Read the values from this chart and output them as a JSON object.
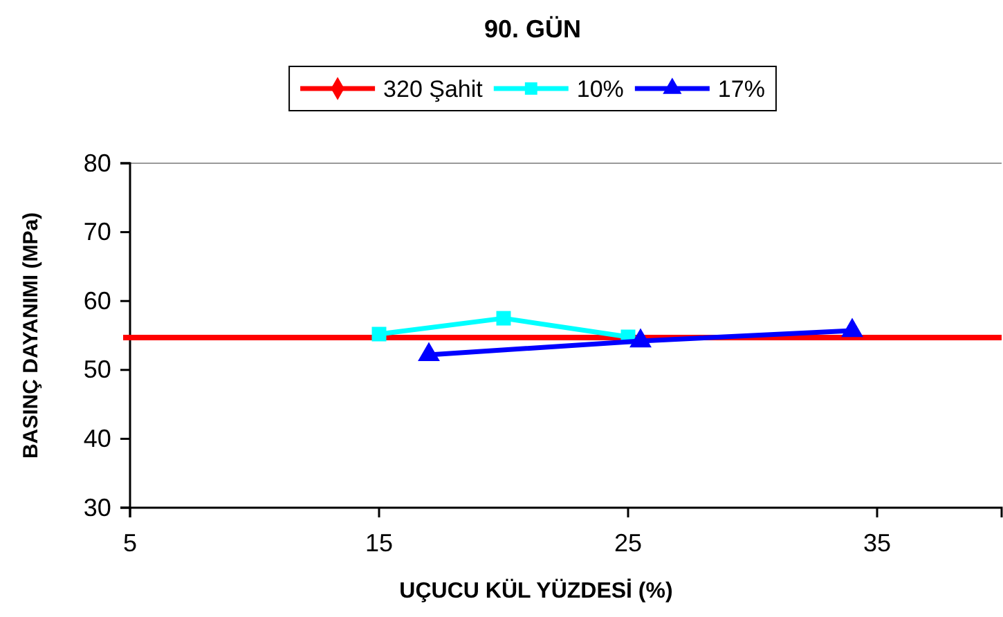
{
  "chart_data": {
    "type": "line",
    "title": "90. GÜN",
    "xlabel": "UÇUCU KÜL YÜZDESİ (%)",
    "ylabel": "BASINÇ DAYANIMI (MPa)",
    "xlim": [
      5,
      40
    ],
    "xticks": [
      5,
      15,
      25,
      35
    ],
    "ylim": [
      30,
      80
    ],
    "yticks": [
      30,
      40,
      50,
      60,
      70,
      80
    ],
    "grid": false,
    "legend": "top",
    "ref_lines": [
      {
        "axis": "y",
        "value": 54.7,
        "label": "320 Şahit",
        "color": "#ff0000"
      }
    ],
    "series": [
      {
        "name": "10%",
        "color": "#00ffff",
        "marker": "square",
        "x": [
          15,
          20,
          25
        ],
        "values": [
          55.2,
          57.5,
          54.8
        ]
      },
      {
        "name": "17%",
        "color": "#0000ff",
        "marker": "triangle",
        "x": [
          17,
          25.5,
          34
        ],
        "values": [
          52.2,
          54.2,
          55.7
        ]
      }
    ]
  }
}
